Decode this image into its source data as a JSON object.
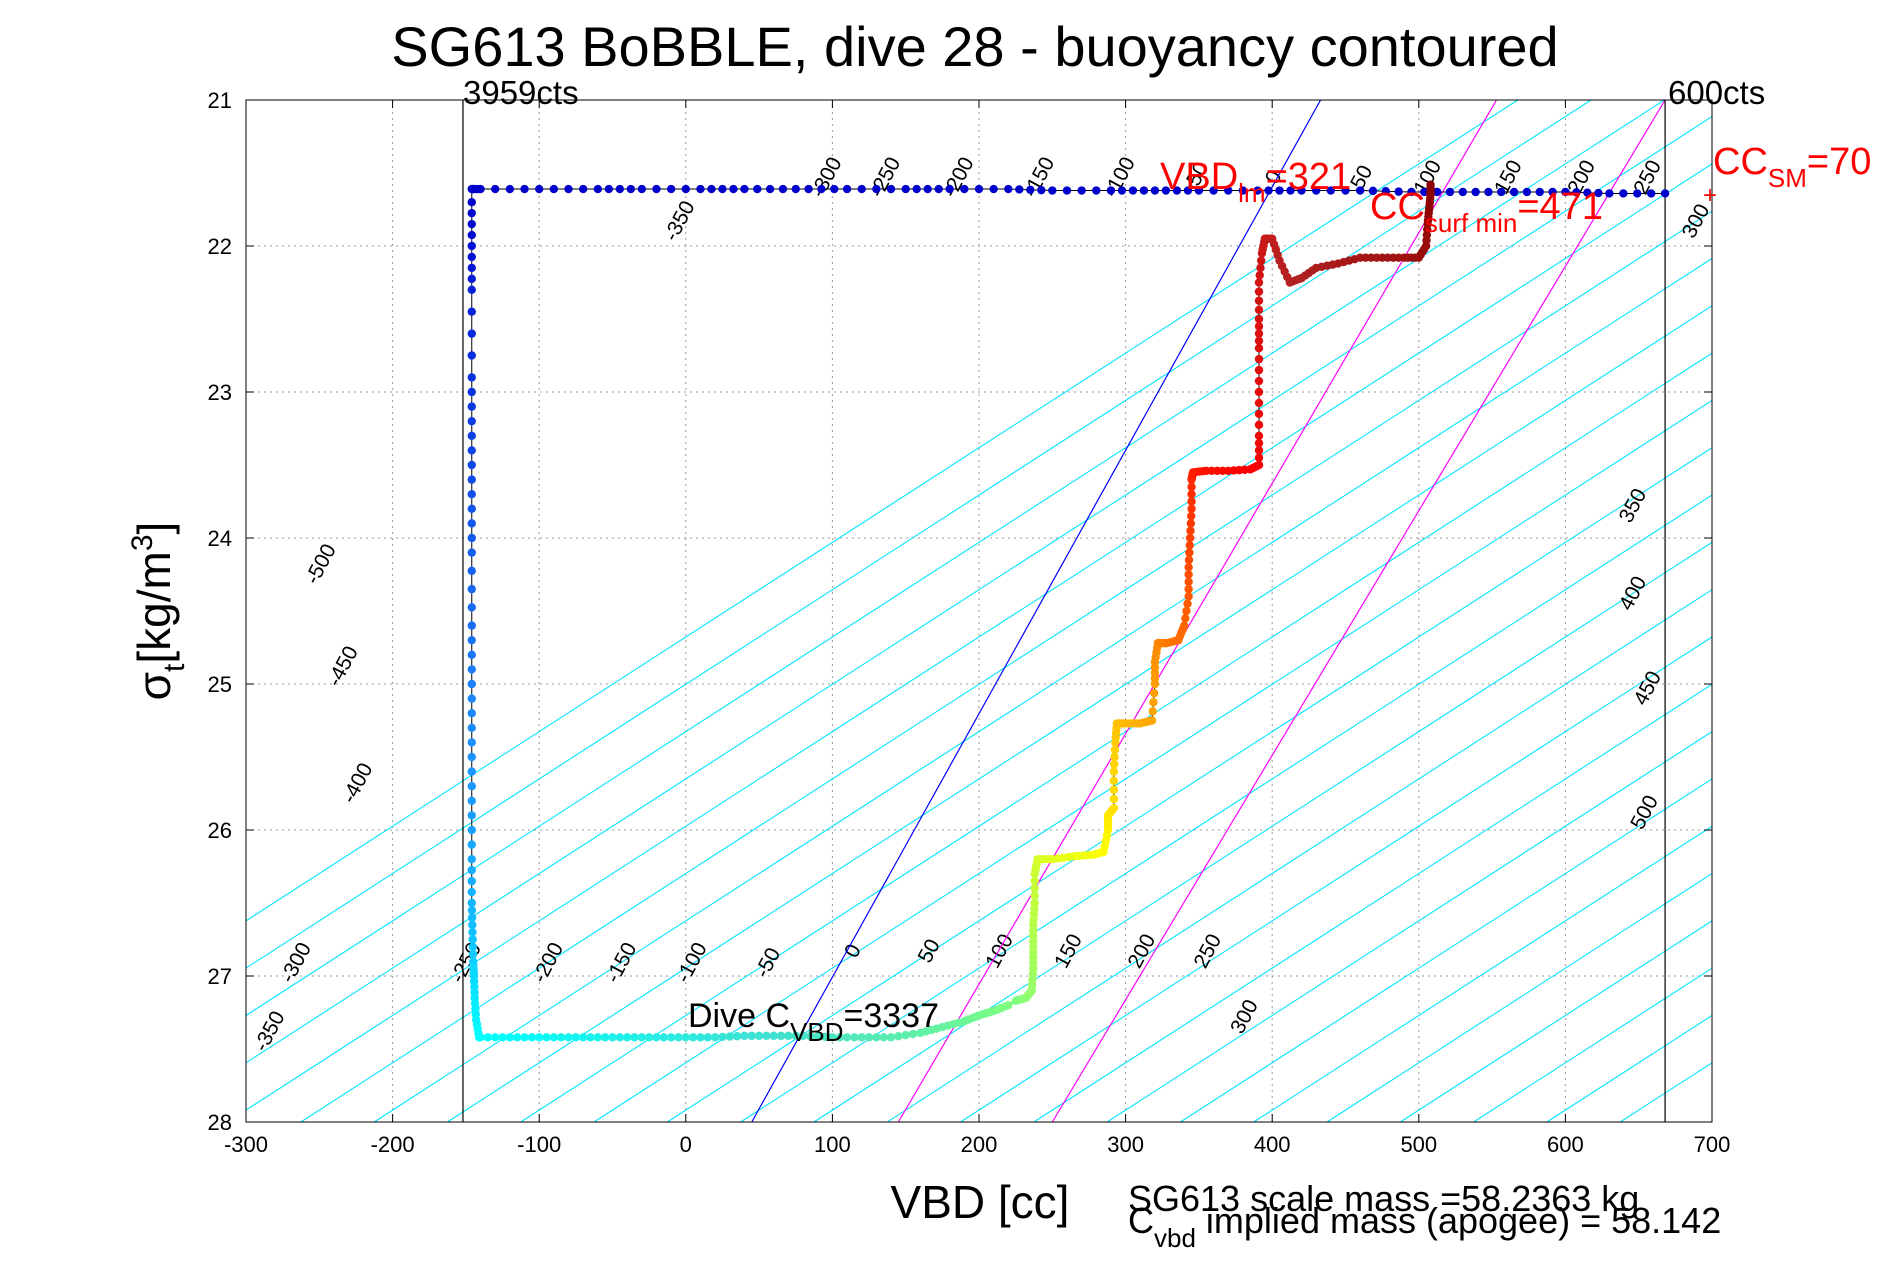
{
  "chart_data": {
    "type": "scatter",
    "title": "SG613 BoBBLE, dive 28 - buoyancy contoured",
    "xlabel": "VBD [cc]",
    "ylabel_main": "σ",
    "ylabel_sub": "t",
    "ylabel_unit": "[kg/m",
    "ylabel_sup": "3",
    "ylabel_close": "]",
    "xlim": [
      -300,
      700
    ],
    "ylim": [
      21,
      28
    ],
    "y_reversed": true,
    "grid": true,
    "xticks": [
      -300,
      -200,
      -100,
      0,
      100,
      200,
      300,
      400,
      500,
      600,
      700
    ],
    "yticks": [
      21,
      22,
      23,
      24,
      25,
      26,
      27,
      28
    ],
    "bounds": {
      "left_vbd": -152,
      "right_vbd": 668,
      "left_label": "3959cts",
      "right_label": "600cts"
    },
    "contours": {
      "color": "#00e5ff",
      "slope_cc_per_sigma": -154.3,
      "anchor_sigma": 27.4,
      "top_labels": [
        "-350",
        "-300",
        "-250",
        "-200",
        "-150",
        "-100",
        "-50",
        "0",
        "50",
        "100",
        "150",
        "200",
        "250",
        "300"
      ],
      "top_label_vbd": [
        -0.3,
        100,
        140,
        190,
        245,
        300,
        352,
        405,
        465,
        510,
        565,
        615,
        660,
        693
      ],
      "top_label_sigma": [
        21.85,
        21.55,
        21.55,
        21.55,
        21.55,
        21.55,
        21.55,
        21.55,
        21.55,
        21.55,
        21.55,
        21.55,
        21.55,
        21.85
      ],
      "right_labels": [
        "350",
        "400",
        "450",
        "500"
      ],
      "right_label_vbd": [
        650,
        650,
        660,
        658
      ],
      "right_label_sigma": [
        23.8,
        24.4,
        25.05,
        25.9
      ],
      "left_labels": [
        "-500",
        "-450",
        "-400",
        "-300",
        "-350"
      ],
      "left_label_vbd": [
        -245,
        -230,
        -220,
        -262,
        -280
      ],
      "left_label_sigma": [
        24.2,
        24.9,
        25.7,
        26.93,
        27.4
      ],
      "bottom_labels": [
        "-250",
        "-200",
        "-150",
        "-100",
        "-50",
        "0",
        "50",
        "100",
        "150",
        "200",
        "250",
        "300"
      ],
      "bottom_label_vbd": [
        -146,
        -90,
        -40,
        8,
        60,
        118,
        170,
        218,
        265,
        315,
        360,
        385
      ],
      "bottom_label_sigma": [
        26.93,
        26.93,
        26.93,
        26.93,
        26.93,
        26.85,
        26.85,
        26.85,
        26.85,
        26.85,
        26.85,
        27.3
      ]
    },
    "lines": [
      {
        "name": "VBD_lm",
        "color": "#0000ff",
        "x": [
          45,
          433
        ],
        "y": [
          28,
          21
        ]
      },
      {
        "name": "CC_surf_min",
        "color": "#ff00ff",
        "x": [
          145,
          553
        ],
        "y": [
          28,
          21
        ]
      },
      {
        "name": "CC_SM",
        "color": "#ff00ff",
        "x": [
          250,
          668
        ],
        "y": [
          28,
          21
        ]
      }
    ],
    "series": [
      {
        "name": "descent_surface",
        "color": "#0000cd",
        "x": [
          668,
          630,
          600,
          565,
          530,
          495,
          460,
          420,
          390,
          350,
          320,
          290,
          250,
          220,
          180,
          150,
          110,
          75,
          40,
          10,
          -30,
          -60,
          -100,
          -140,
          -145,
          -146
        ],
        "y": [
          21.64,
          21.64,
          21.63,
          21.63,
          21.63,
          21.63,
          21.62,
          21.62,
          21.62,
          21.62,
          21.62,
          21.62,
          21.62,
          21.61,
          21.61,
          21.61,
          21.61,
          21.61,
          21.61,
          21.61,
          21.61,
          21.61,
          21.61,
          21.61,
          21.61,
          21.61
        ]
      },
      {
        "name": "descent",
        "color_grad": [
          "#0000cd",
          "#1e90ff",
          "#00ffff"
        ],
        "x": [
          -146,
          -146,
          -146,
          -146,
          -146,
          -146,
          -146,
          -146,
          -146,
          -146,
          -146,
          -146,
          -146,
          -145.5,
          -145,
          -144.5,
          -144,
          -143,
          -141
        ],
        "y": [
          21.7,
          22.0,
          22.3,
          22.9,
          23.3,
          23.7,
          24.1,
          24.6,
          25.0,
          25.4,
          25.8,
          26.2,
          26.5,
          26.7,
          26.9,
          27.0,
          27.15,
          27.3,
          27.42
        ]
      },
      {
        "name": "apogee",
        "color_grad": [
          "#00ffff",
          "#40e0d0",
          "#7fff7f"
        ],
        "x": [
          -140,
          -120,
          -100,
          -80,
          -60,
          -40,
          -20,
          0,
          20,
          40,
          60,
          80,
          100,
          120,
          140,
          160,
          175,
          190,
          200,
          210,
          220
        ],
        "y": [
          27.42,
          27.42,
          27.42,
          27.42,
          27.42,
          27.42,
          27.42,
          27.42,
          27.42,
          27.41,
          27.41,
          27.41,
          27.42,
          27.42,
          27.42,
          27.39,
          27.35,
          27.31,
          27.27,
          27.24,
          27.2
        ]
      },
      {
        "name": "ascent",
        "color_grad": [
          "#7fff7f",
          "#ffff00",
          "#ff8c00",
          "#ff0000",
          "#b22222",
          "#8b0000"
        ],
        "x": [
          225,
          232,
          236,
          237,
          237,
          237,
          238,
          238,
          240,
          250,
          265,
          278,
          285,
          288,
          288,
          292,
          292,
          293,
          294,
          300,
          310,
          318,
          320,
          320,
          322,
          328,
          336,
          340,
          343,
          343,
          344,
          345,
          345,
          346,
          355,
          370,
          385,
          391,
          391,
          391,
          391,
          391,
          391,
          393,
          395,
          400,
          405,
          412,
          420,
          430,
          445,
          460,
          475,
          490,
          500,
          505,
          506,
          507,
          508,
          508
        ],
        "y": [
          27.17,
          27.15,
          27.1,
          26.95,
          26.8,
          26.65,
          26.5,
          26.3,
          26.2,
          26.2,
          26.18,
          26.17,
          26.15,
          26.0,
          25.9,
          25.85,
          25.6,
          25.4,
          25.27,
          25.27,
          25.27,
          25.25,
          25.0,
          24.85,
          24.72,
          24.72,
          24.7,
          24.6,
          24.4,
          24.2,
          24.0,
          23.8,
          23.6,
          23.55,
          23.54,
          23.54,
          23.53,
          23.5,
          23.3,
          23.0,
          22.7,
          22.5,
          22.25,
          22.05,
          21.95,
          21.95,
          22.1,
          22.25,
          22.22,
          22.15,
          22.12,
          22.08,
          22.08,
          22.08,
          22.08,
          22.0,
          21.85,
          21.75,
          21.65,
          21.58
        ]
      }
    ],
    "annotations": {
      "vbd_lm": {
        "prefix": "VBD",
        "sub": "lm",
        "suffix": "=321",
        "color": "#ff0000"
      },
      "cc_surf_min": {
        "prefix": "CC",
        "sub": "surf min",
        "suffix": "=471",
        "color": "#ff0000"
      },
      "cc_sm": {
        "prefix": "CC",
        "sub": "SM",
        "suffix": "=70",
        "color": "#ff0000"
      },
      "dive_cvbd": {
        "prefix": "Dive C",
        "sub": "VBD",
        "suffix": "=3337",
        "color": "#000000"
      },
      "scale_mass": "SG613 scale mass =58.2363 kg",
      "implied_mass": {
        "prefix": "C",
        "sub": "vbd",
        "suffix": " implied mass (apogee) = 58.142"
      }
    }
  }
}
